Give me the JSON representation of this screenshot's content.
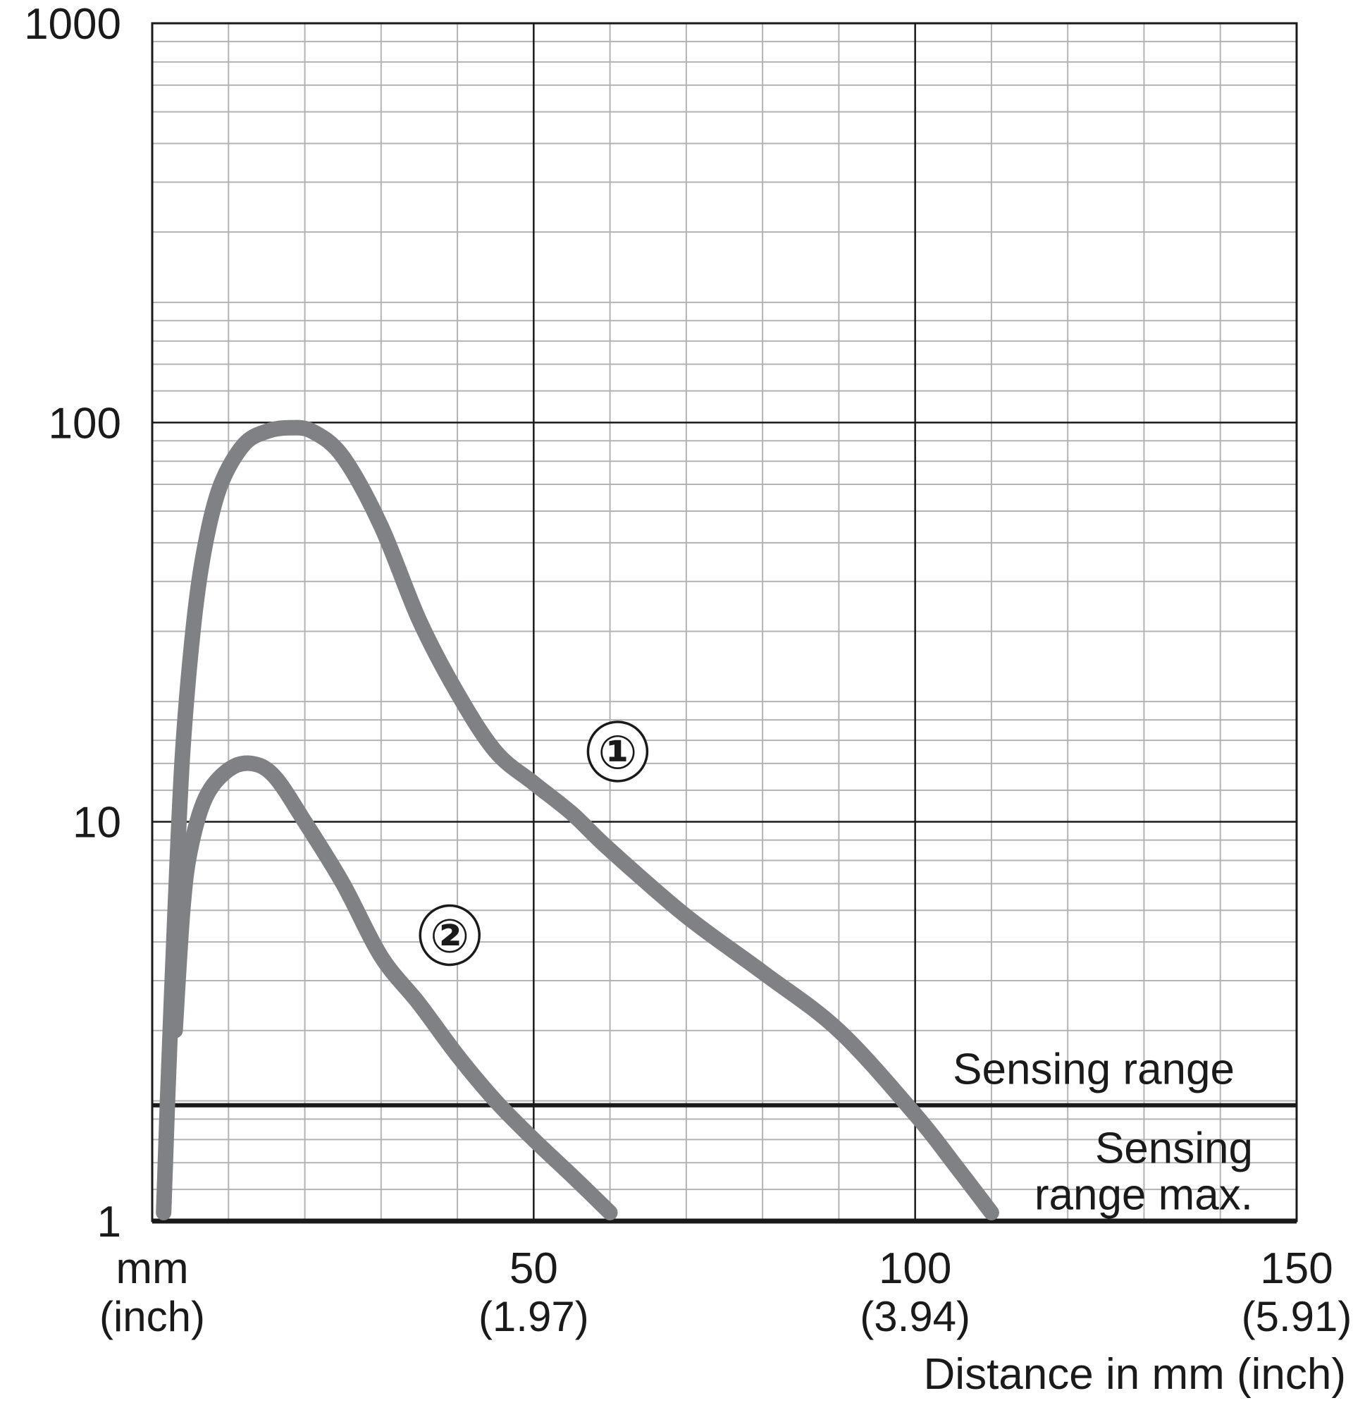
{
  "chart_data": {
    "type": "line",
    "xlabel": "Distance in mm (inch)",
    "xlim": [
      0,
      150
    ],
    "ylim": [
      1,
      1000
    ],
    "yscale": "log",
    "grid": true,
    "x_ticks": [
      {
        "value": 0,
        "label": "mm",
        "sublabel": "(inch)"
      },
      {
        "value": 50,
        "label": "50",
        "sublabel": "(1.97)"
      },
      {
        "value": 100,
        "label": "100",
        "sublabel": "(3.94)"
      },
      {
        "value": 150,
        "label": "150",
        "sublabel": "(5.91)"
      }
    ],
    "y_ticks": [
      {
        "value": 1,
        "label": "1"
      },
      {
        "value": 10,
        "label": "10"
      },
      {
        "value": 100,
        "label": "100"
      },
      {
        "value": 1000,
        "label": "1000"
      }
    ],
    "reference_lines": [
      {
        "y": 1.95,
        "label_above": "Sensing range",
        "label_below_lines": [
          "Sensing",
          "range max."
        ]
      }
    ],
    "series": [
      {
        "name": "①",
        "label_at": {
          "x": 61,
          "y": 15
        },
        "points": [
          [
            1.5,
            1.05
          ],
          [
            2,
            2
          ],
          [
            3,
            6
          ],
          [
            4,
            15
          ],
          [
            5.5,
            32
          ],
          [
            7,
            50
          ],
          [
            9,
            70
          ],
          [
            12,
            88
          ],
          [
            15,
            95
          ],
          [
            18,
            97
          ],
          [
            21,
            95
          ],
          [
            25,
            82
          ],
          [
            30,
            55
          ],
          [
            35,
            32
          ],
          [
            40,
            21
          ],
          [
            45,
            15
          ],
          [
            50,
            12.5
          ],
          [
            55,
            10.5
          ],
          [
            60,
            8.5
          ],
          [
            70,
            5.8
          ],
          [
            80,
            4.2
          ],
          [
            90,
            3.0
          ],
          [
            100,
            1.85
          ],
          [
            105,
            1.4
          ],
          [
            110,
            1.05
          ]
        ]
      },
      {
        "name": "②",
        "label_at": {
          "x": 39,
          "y": 5.2
        },
        "points": [
          [
            3,
            3
          ],
          [
            4,
            6
          ],
          [
            5,
            8.5
          ],
          [
            7,
            11.5
          ],
          [
            10,
            13.5
          ],
          [
            13,
            14
          ],
          [
            16,
            13
          ],
          [
            20,
            10
          ],
          [
            25,
            7
          ],
          [
            30,
            4.6
          ],
          [
            35,
            3.5
          ],
          [
            40,
            2.6
          ],
          [
            45,
            2.0
          ],
          [
            50,
            1.6
          ],
          [
            55,
            1.3
          ],
          [
            60,
            1.05
          ]
        ]
      }
    ],
    "colors": {
      "curve": "#808184",
      "grid_minor": "#b3b3b3",
      "grid_major": "#1a1a1a",
      "axis": "#1a1a1a"
    }
  }
}
